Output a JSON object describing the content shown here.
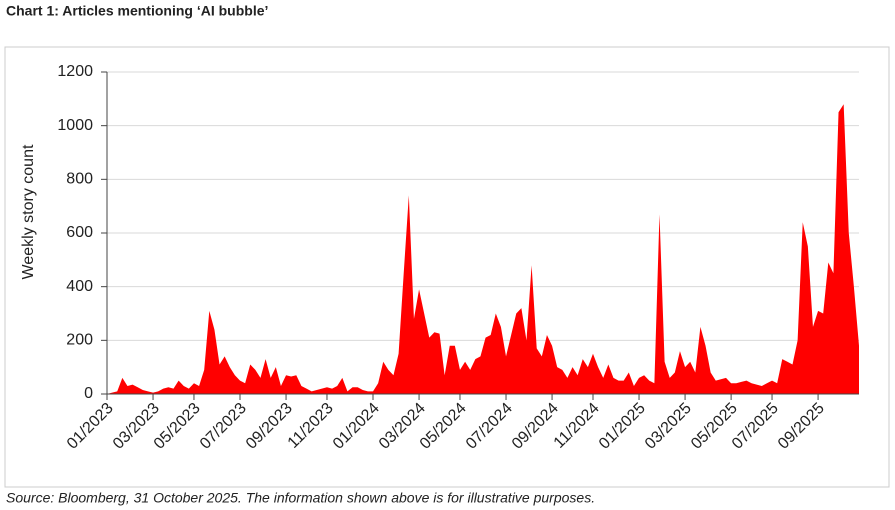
{
  "chart_data": {
    "type": "area",
    "title": "Chart 1: Articles mentioning ‘AI bubble’",
    "source": "Source: Bloomberg, 31 October 2025. The information shown above is for illustrative purposes.",
    "y_label": "Weekly story count",
    "color": "#ff0000",
    "ylim": [
      0,
      1200
    ],
    "yticks": [
      0,
      200,
      400,
      600,
      800,
      1000,
      1200
    ],
    "grid": true,
    "categories": [
      "01/2023",
      null,
      null,
      null,
      null,
      null,
      null,
      null,
      null,
      "03/2023",
      null,
      null,
      null,
      null,
      null,
      null,
      null,
      "05/2023",
      null,
      null,
      null,
      null,
      null,
      null,
      null,
      null,
      "07/2023",
      null,
      null,
      null,
      null,
      null,
      null,
      null,
      null,
      "09/2023",
      null,
      null,
      null,
      null,
      null,
      null,
      null,
      "11/2023",
      null,
      null,
      null,
      null,
      null,
      null,
      null,
      null,
      "01/2024",
      null,
      null,
      null,
      null,
      null,
      null,
      null,
      null,
      "03/2024",
      null,
      null,
      null,
      null,
      null,
      null,
      null,
      "05/2024",
      null,
      null,
      null,
      null,
      null,
      null,
      null,
      null,
      "07/2024",
      null,
      null,
      null,
      null,
      null,
      null,
      null,
      null,
      "09/2024",
      null,
      null,
      null,
      null,
      null,
      null,
      null,
      "11/2024",
      null,
      null,
      null,
      null,
      null,
      null,
      null,
      null,
      "01/2025",
      null,
      null,
      null,
      null,
      null,
      null,
      null,
      null,
      "03/2025",
      null,
      null,
      null,
      null,
      null,
      null,
      null,
      null,
      "05/2025",
      null,
      null,
      null,
      null,
      null,
      null,
      null,
      "07/2025",
      null,
      null,
      null,
      null,
      null,
      null,
      null,
      null,
      "09/2025",
      null,
      null,
      null,
      null,
      null,
      null,
      null,
      null
    ],
    "values": [
      0,
      5,
      10,
      60,
      30,
      35,
      25,
      15,
      10,
      5,
      10,
      20,
      25,
      20,
      50,
      30,
      20,
      40,
      30,
      90,
      310,
      240,
      110,
      140,
      100,
      70,
      50,
      40,
      110,
      90,
      60,
      130,
      60,
      100,
      30,
      70,
      65,
      70,
      30,
      20,
      10,
      15,
      20,
      25,
      20,
      30,
      60,
      10,
      25,
      25,
      15,
      10,
      10,
      40,
      120,
      90,
      70,
      150,
      450,
      740,
      280,
      390,
      300,
      210,
      230,
      225,
      70,
      180,
      180,
      90,
      120,
      90,
      130,
      140,
      210,
      220,
      300,
      250,
      140,
      220,
      300,
      320,
      200,
      480,
      170,
      140,
      220,
      180,
      100,
      90,
      60,
      100,
      70,
      130,
      100,
      150,
      100,
      60,
      110,
      60,
      50,
      50,
      80,
      30,
      60,
      70,
      50,
      40,
      670,
      120,
      60,
      80,
      160,
      100,
      120,
      80,
      250,
      180,
      80,
      50,
      55,
      60,
      40,
      40,
      45,
      50,
      40,
      35,
      30,
      40,
      50,
      40,
      130,
      120,
      110,
      200,
      640,
      550,
      250,
      310,
      300,
      490,
      450,
      1050,
      1080,
      600,
      400,
      180
    ]
  }
}
